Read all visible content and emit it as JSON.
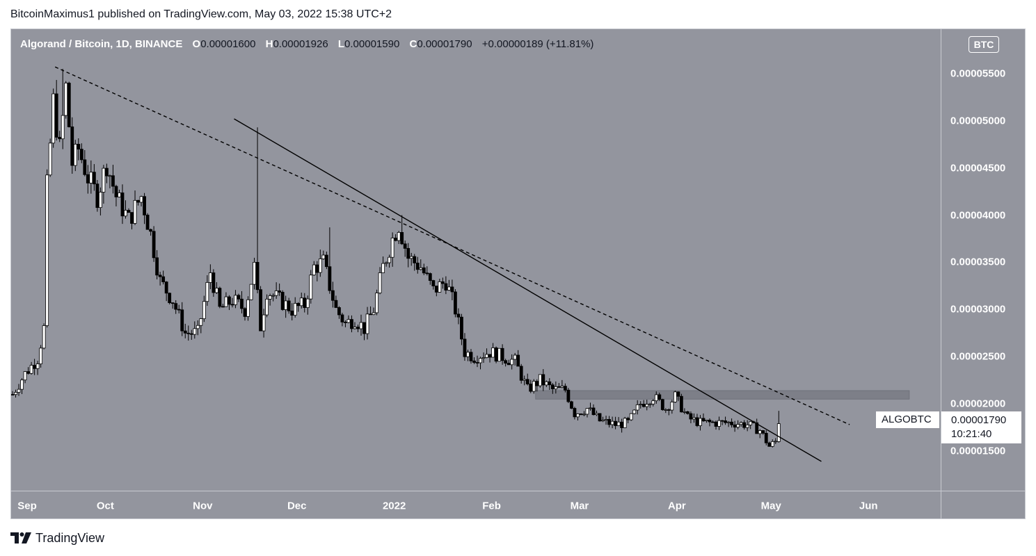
{
  "publisher_line": "BitcoinMaximus1 published on TradingView.com, May 03, 2022 15:38 UTC+2",
  "symbol_title": "Algorand / Bitcoin, 1D, BINANCE",
  "ohlc": {
    "o_key": "O",
    "o_val": "0.00001600",
    "h_key": "H",
    "h_val": "0.00001926",
    "l_key": "L",
    "l_val": "0.00001590",
    "c_key": "C",
    "c_val": "0.00001790",
    "change": "+0.00000189 (+11.81%)"
  },
  "currency_badge": "BTC",
  "price_axis_ticks": [
    "0.00005500",
    "0.00005000",
    "0.00004500",
    "0.00004000",
    "0.00003500",
    "0.00003000",
    "0.00002500",
    "0.00002000",
    "0.00001500"
  ],
  "time_axis_ticks": [
    "Sep",
    "Oct",
    "Nov",
    "Dec",
    "2022",
    "Feb",
    "Mar",
    "Apr",
    "May",
    "Jun"
  ],
  "symbol_tag": "ALGOBTC",
  "last_price": "0.00001790",
  "countdown": "10:21:40",
  "footer_brand": "TradingView",
  "colors": {
    "plot_background": "#93959e",
    "candle_up": "#ffffff",
    "candle_down": "#000000",
    "trendline": "#000000",
    "zone_fill": "#7d7f88",
    "text_light": "#ffffff"
  },
  "chart_data": {
    "type": "candlestick",
    "symbol": "ALGOBTC",
    "interval": "1D",
    "exchange": "BINANCE",
    "ylim": [
      1.08e-05,
      5.97e-05
    ],
    "x_range": [
      "2021-09-01",
      "2022-06-24"
    ],
    "anchor_points": [
      [
        "2021-09-01",
        2.1e-05
      ],
      [
        "2021-09-05",
        2.32e-05
      ],
      [
        "2021-09-09",
        2.48e-05
      ],
      [
        "2021-09-11",
        2.8e-05
      ],
      [
        "2021-09-12",
        4.3e-05
      ],
      [
        "2021-09-14",
        5.2e-05
      ],
      [
        "2021-09-16",
        4.7e-05
      ],
      [
        "2021-09-18",
        5.35e-05
      ],
      [
        "2021-09-20",
        4.55e-05
      ],
      [
        "2021-09-22",
        4.7e-05
      ],
      [
        "2021-09-25",
        4.4e-05
      ],
      [
        "2021-09-28",
        4.2e-05
      ],
      [
        "2021-10-01",
        4.55e-05
      ],
      [
        "2021-10-04",
        4.2e-05
      ],
      [
        "2021-10-08",
        3.95e-05
      ],
      [
        "2021-10-12",
        4.2e-05
      ],
      [
        "2021-10-15",
        3.8e-05
      ],
      [
        "2021-10-18",
        3.3e-05
      ],
      [
        "2021-10-22",
        3.1e-05
      ],
      [
        "2021-10-26",
        2.75e-05
      ],
      [
        "2021-10-30",
        2.75e-05
      ],
      [
        "2021-11-03",
        3.4e-05
      ],
      [
        "2021-11-06",
        3e-05
      ],
      [
        "2021-11-10",
        3.1e-05
      ],
      [
        "2021-11-14",
        3e-05
      ],
      [
        "2021-11-17",
        3.45e-05
      ],
      [
        "2021-11-19",
        2.82e-05
      ],
      [
        "2021-11-21",
        3.2e-05
      ],
      [
        "2021-11-25",
        3.1e-05
      ],
      [
        "2021-11-29",
        3e-05
      ],
      [
        "2021-12-03",
        3.05e-05
      ],
      [
        "2021-12-06",
        3.45e-05
      ],
      [
        "2021-12-09",
        3.5e-05
      ],
      [
        "2021-12-13",
        3e-05
      ],
      [
        "2021-12-16",
        2.85e-05
      ],
      [
        "2021-12-19",
        2.9e-05
      ],
      [
        "2021-12-22",
        2.8e-05
      ],
      [
        "2021-12-25",
        3e-05
      ],
      [
        "2021-12-28",
        3.45e-05
      ],
      [
        "2021-12-31",
        3.75e-05
      ],
      [
        "2022-01-02",
        3.9e-05
      ],
      [
        "2022-01-05",
        3.55e-05
      ],
      [
        "2022-01-09",
        3.45e-05
      ],
      [
        "2022-01-13",
        3.2e-05
      ],
      [
        "2022-01-17",
        3.3e-05
      ],
      [
        "2022-01-20",
        3e-05
      ],
      [
        "2022-01-23",
        2.55e-05
      ],
      [
        "2022-01-26",
        2.5e-05
      ],
      [
        "2022-01-31",
        2.55e-05
      ],
      [
        "2022-02-04",
        2.5e-05
      ],
      [
        "2022-02-08",
        2.45e-05
      ],
      [
        "2022-02-12",
        2.15e-05
      ],
      [
        "2022-02-16",
        2.25e-05
      ],
      [
        "2022-02-20",
        2.15e-05
      ],
      [
        "2022-02-24",
        2.15e-05
      ],
      [
        "2022-02-27",
        1.9e-05
      ],
      [
        "2022-03-03",
        1.95e-05
      ],
      [
        "2022-03-07",
        1.82e-05
      ],
      [
        "2022-03-12",
        1.78e-05
      ],
      [
        "2022-03-16",
        1.8e-05
      ],
      [
        "2022-03-20",
        2e-05
      ],
      [
        "2022-03-24",
        2.08e-05
      ],
      [
        "2022-03-28",
        1.95e-05
      ],
      [
        "2022-03-31",
        2.08e-05
      ],
      [
        "2022-04-04",
        1.85e-05
      ],
      [
        "2022-04-08",
        1.8e-05
      ],
      [
        "2022-04-13",
        1.8e-05
      ],
      [
        "2022-04-18",
        1.8e-05
      ],
      [
        "2022-04-23",
        1.78e-05
      ],
      [
        "2022-04-27",
        1.72e-05
      ],
      [
        "2022-04-30",
        1.55e-05
      ],
      [
        "2022-05-02",
        1.6e-05
      ],
      [
        "2022-05-03",
        1.79e-05
      ]
    ],
    "wick_spikes": [
      {
        "date": "2021-09-17",
        "high": 5.55e-05
      },
      {
        "date": "2021-11-18",
        "high": 4.93e-05
      },
      {
        "date": "2021-12-11",
        "high": 3.87e-05
      },
      {
        "date": "2022-01-03",
        "high": 4e-05
      },
      {
        "date": "2022-05-03",
        "high": 1.926e-05
      }
    ],
    "last_candle": {
      "date": "2022-05-03",
      "open": 1.6e-05,
      "high": 1.926e-05,
      "low": 1.59e-05,
      "close": 1.79e-05
    },
    "trendlines": [
      {
        "style": "dashed",
        "from": [
          "2021-09-15",
          5.57e-05
        ],
        "to": [
          "2022-05-26",
          1.78e-05
        ]
      },
      {
        "style": "solid",
        "from": [
          "2021-11-11",
          5.02e-05
        ],
        "to": [
          "2022-05-17",
          1.39e-05
        ]
      }
    ],
    "horizontal_zone": {
      "from": "2022-02-15",
      "to": "2022-06-14",
      "low": 2.05e-05,
      "high": 2.14e-05
    }
  }
}
